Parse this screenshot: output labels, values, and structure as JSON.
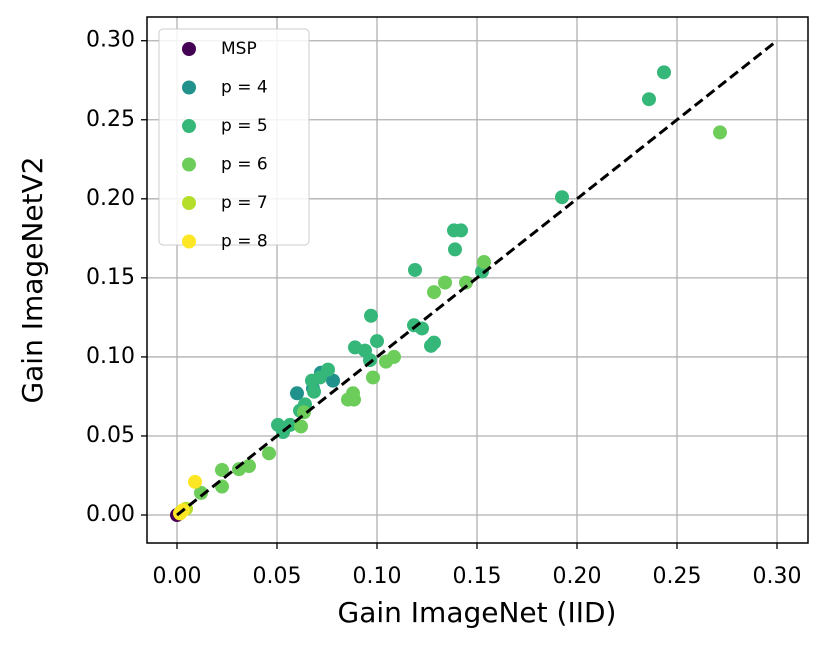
{
  "chart_data": {
    "type": "scatter",
    "xlabel": "Gain ImageNet (IID)",
    "ylabel": "Gain ImageNetV2",
    "xlim": [
      -0.015,
      0.3155
    ],
    "ylim": [
      -0.0177,
      0.315
    ],
    "xticks": [
      {
        "value": 0,
        "label": "0.00"
      },
      {
        "value": 0.05,
        "label": "0.05"
      },
      {
        "value": 0.1,
        "label": "0.10"
      },
      {
        "value": 0.15,
        "label": "0.15"
      },
      {
        "value": 0.2,
        "label": "0.20"
      },
      {
        "value": 0.25,
        "label": "0.25"
      },
      {
        "value": 0.3,
        "label": "0.30"
      }
    ],
    "yticks": [
      {
        "value": 0,
        "label": "0.00"
      },
      {
        "value": 0.05,
        "label": "0.05"
      },
      {
        "value": 0.1,
        "label": "0.10"
      },
      {
        "value": 0.15,
        "label": "0.15"
      },
      {
        "value": 0.2,
        "label": "0.20"
      },
      {
        "value": 0.25,
        "label": "0.25"
      },
      {
        "value": 0.3,
        "label": "0.30"
      }
    ],
    "grid": true,
    "legend": "upper-left",
    "reference_line": {
      "x": [
        0,
        0.3
      ],
      "y": [
        0,
        0.3
      ],
      "color": "#000000"
    },
    "series": [
      {
        "name": "MSP",
        "color": "#440154",
        "x": [
          0
        ],
        "values": [
          0
        ]
      },
      {
        "name": "p = 4",
        "color": "#21918c",
        "x": [
          0.06,
          0.078,
          0.068,
          0.072
        ],
        "values": [
          0.077,
          0.085,
          0.08,
          0.09
        ]
      },
      {
        "name": "p = 5",
        "color": "#35b779",
        "x": [
          0.236,
          0.2435,
          0.1925,
          0.1385,
          0.142,
          0.139,
          0.119,
          0.1525,
          0.097,
          0.1185,
          0.1225,
          0.1285,
          0.127,
          0.1,
          0.089,
          0.094,
          0.0965,
          0.0755,
          0.0715,
          0.0675,
          0.0685,
          0.064,
          0.0505,
          0.0565,
          0.053,
          0.0615
        ],
        "values": [
          0.263,
          0.28,
          0.201,
          0.18,
          0.18,
          0.168,
          0.155,
          0.154,
          0.126,
          0.12,
          0.118,
          0.109,
          0.107,
          0.11,
          0.106,
          0.104,
          0.098,
          0.092,
          0.087,
          0.085,
          0.078,
          0.07,
          0.057,
          0.057,
          0.0525,
          0.066
        ]
      },
      {
        "name": "p = 6",
        "color": "#6ccd5a",
        "x": [
          0.2715,
          0.1535,
          0.1445,
          0.134,
          0.1285,
          0.1085,
          0.1045,
          0.098,
          0.088,
          0.0855,
          0.0885,
          0.0635,
          0.062,
          0.046,
          0.036,
          0.031,
          0.0225,
          0.0225,
          0.012
        ],
        "values": [
          0.242,
          0.16,
          0.147,
          0.147,
          0.141,
          0.1,
          0.097,
          0.087,
          0.077,
          0.073,
          0.073,
          0.065,
          0.056,
          0.039,
          0.031,
          0.029,
          0.0285,
          0.018,
          0.014
        ]
      },
      {
        "name": "p = 7",
        "color": "#b5de2b",
        "x": [
          0.002,
          0.0045
        ],
        "values": [
          0.002,
          0.004
        ]
      },
      {
        "name": "p = 8",
        "color": "#fde725",
        "x": [
          0.009,
          0.003,
          0.0015
        ],
        "values": [
          0.021,
          0.003,
          0.001
        ]
      }
    ]
  }
}
